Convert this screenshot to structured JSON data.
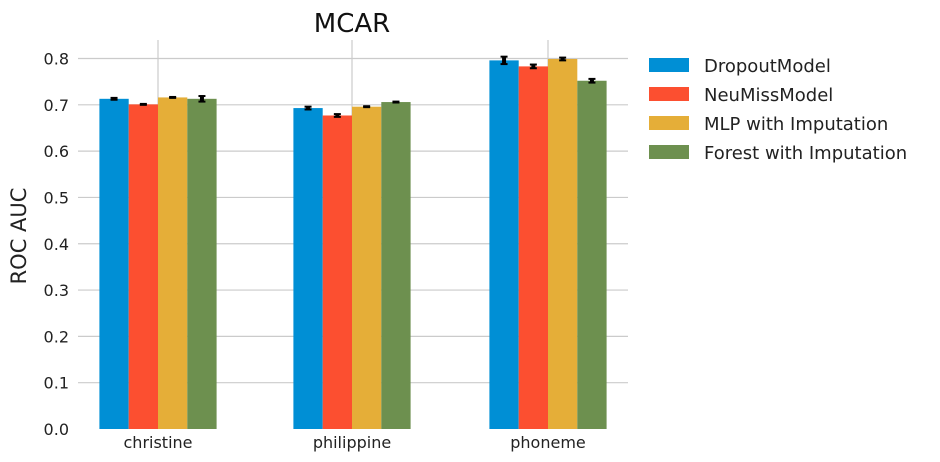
{
  "chart_data": {
    "type": "bar",
    "title": "MCAR",
    "xlabel": "",
    "ylabel": "ROC AUC",
    "ylim": [
      0,
      0.84
    ],
    "yticks": [
      "0.0",
      "0.1",
      "0.2",
      "0.3",
      "0.4",
      "0.5",
      "0.6",
      "0.7",
      "0.8"
    ],
    "categories": [
      "christine",
      "philippine",
      "phoneme"
    ],
    "grid": true,
    "legend_position": "right",
    "series": [
      {
        "name": "DropoutModel",
        "color": "#008fd5",
        "values": [
          0.713,
          0.693,
          0.796
        ],
        "errors": [
          0.002,
          0.003,
          0.008
        ]
      },
      {
        "name": "NeuMissModel",
        "color": "#fc4f30",
        "values": [
          0.701,
          0.677,
          0.783
        ],
        "errors": [
          0.001,
          0.003,
          0.004
        ]
      },
      {
        "name": "MLP with Imputation",
        "color": "#e5ae38",
        "values": [
          0.716,
          0.696,
          0.799
        ],
        "errors": [
          0.001,
          0.001,
          0.003
        ]
      },
      {
        "name": "Forest with Imputation",
        "color": "#6d904f",
        "values": [
          0.713,
          0.706,
          0.752
        ],
        "errors": [
          0.006,
          0.001,
          0.004
        ]
      }
    ]
  }
}
